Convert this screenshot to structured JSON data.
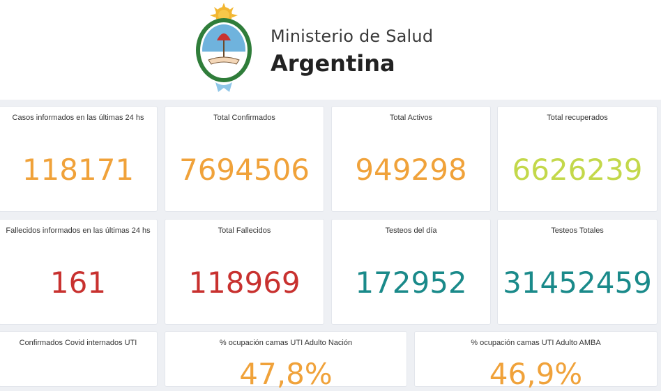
{
  "header": {
    "ministry_line1": "Ministerio de Salud",
    "ministry_line2": "Argentina"
  },
  "colors": {
    "orange": "#f0a23a",
    "green": "#c3d84a",
    "red": "#c8312f",
    "teal": "#1a8a8a"
  },
  "cards": {
    "cases_24h": {
      "label": "Casos informados en las últimas 24 hs",
      "value": "118171"
    },
    "total_confirmed": {
      "label": "Total Confirmados",
      "value": "7694506"
    },
    "total_active": {
      "label": "Total Activos",
      "value": "949298"
    },
    "total_recovered": {
      "label": "Total recuperados",
      "value": "6626239"
    },
    "deaths_24h": {
      "label": "Fallecidos informados en las últimas 24 hs",
      "value": "161"
    },
    "total_deaths": {
      "label": "Total Fallecidos",
      "value": "118969"
    },
    "tests_day": {
      "label": "Testeos del día",
      "value": "172952"
    },
    "tests_total": {
      "label": "Testeos Totales",
      "value": "31452459"
    },
    "icu_covid": {
      "label": "Confirmados Covid internados UTI",
      "value": ""
    },
    "icu_nation": {
      "label": "% ocupación camas UTI Adulto Nación",
      "value": "47,8%"
    },
    "icu_amba": {
      "label": "% ocupación camas UTI Adulto AMBA",
      "value": "46,9%"
    }
  }
}
